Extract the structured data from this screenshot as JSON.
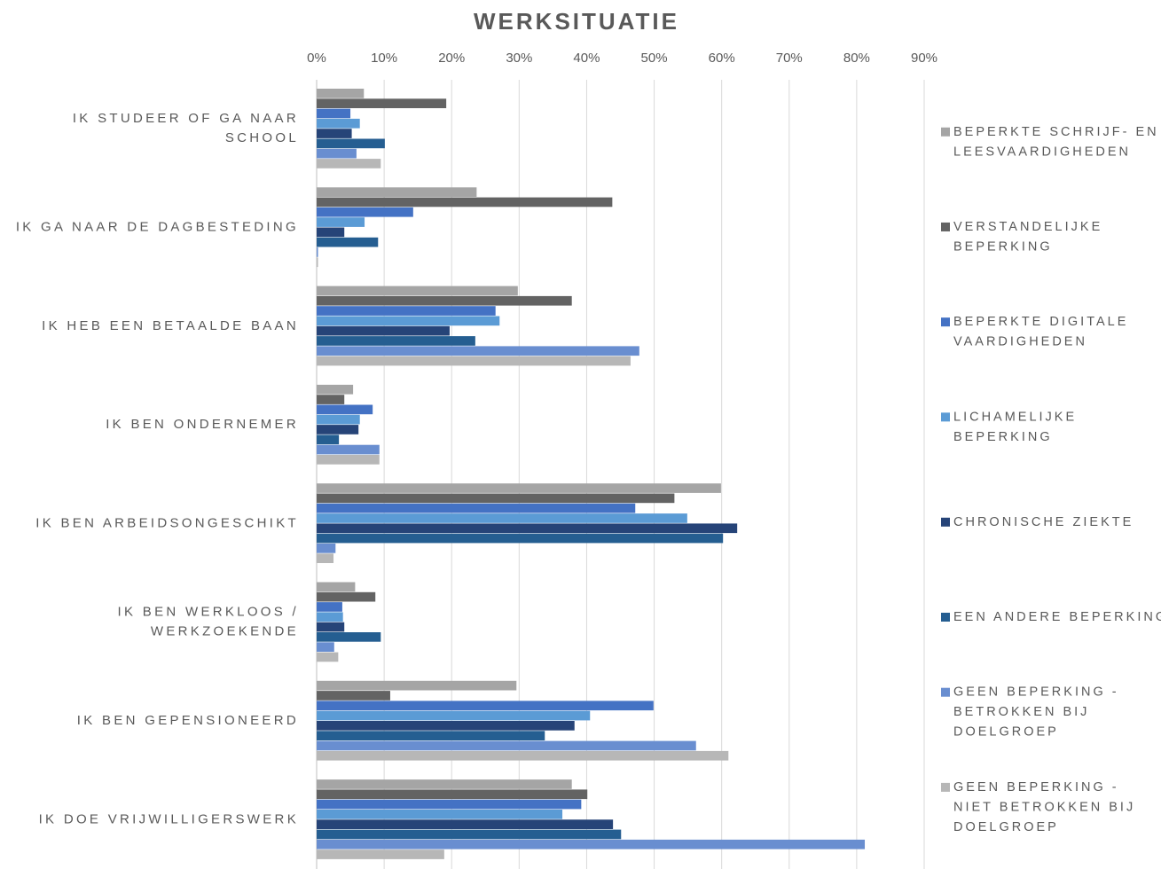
{
  "chart_data": {
    "type": "hbar",
    "title": "WERKSITUATIE",
    "categories": [
      "IK STUDEER OF GA NAAR SCHOOL",
      "IK GA NAAR DE DAGBESTEDING",
      "IK HEB EEN BETAALDE BAAN",
      "IK BEN ONDERNEMER",
      "IK BEN ARBEIDSONGESCHIKT",
      "IK BEN WERKLOOS / WERKZOEKENDE",
      "IK BEN GEPENSIONEERD",
      "IK DOE VRIJWILLIGERSWERK"
    ],
    "series": [
      {
        "name": "BEPERKTE SCHRIJF- EN LEESVAARDIGHEDEN",
        "color": "#a5a5a5",
        "values": [
          7.0,
          23.7,
          29.8,
          5.4,
          59.9,
          5.7,
          29.6,
          37.8
        ]
      },
      {
        "name": "VERSTANDELIJKE BEPERKING",
        "color": "#636363",
        "values": [
          19.2,
          43.8,
          37.8,
          4.1,
          53.0,
          8.7,
          10.9,
          40.1
        ]
      },
      {
        "name": "BEPERKTE DIGITALE VAARDIGHEDEN",
        "color": "#4472c4",
        "values": [
          5.0,
          14.3,
          26.5,
          8.3,
          47.2,
          3.8,
          49.9,
          39.2
        ]
      },
      {
        "name": "LICHAMELIJKE BEPERKING",
        "color": "#5b9bd5",
        "values": [
          6.4,
          7.1,
          27.1,
          6.4,
          54.9,
          3.9,
          40.5,
          36.4
        ]
      },
      {
        "name": "CHRONISCHE ZIEKTE",
        "color": "#264478",
        "values": [
          5.2,
          4.1,
          19.7,
          6.2,
          62.3,
          4.1,
          38.2,
          43.9
        ]
      },
      {
        "name": "EEN ANDERE BEPERKING",
        "color": "#255e91",
        "values": [
          10.1,
          9.1,
          23.5,
          3.3,
          60.2,
          9.5,
          33.8,
          45.1
        ]
      },
      {
        "name": "GEEN BEPERKING - BETROKKEN BIJ DOELGROEP",
        "color": "#698ed0",
        "values": [
          5.9,
          0.2,
          47.8,
          9.3,
          2.8,
          2.6,
          56.2,
          81.2
        ]
      },
      {
        "name": "GEEN BEPERKING - NIET BETROKKEN BIJ DOELGROEP",
        "color": "#b7b7b7",
        "values": [
          9.5,
          0.2,
          46.5,
          9.3,
          2.5,
          3.2,
          61.0,
          18.9
        ]
      }
    ],
    "xlim": [
      0,
      90
    ],
    "xticks": [
      {
        "value": 0,
        "label": "0%"
      },
      {
        "value": 10,
        "label": "10%"
      },
      {
        "value": 20,
        "label": "20%"
      },
      {
        "value": 30,
        "label": "30%"
      },
      {
        "value": 40,
        "label": "40%"
      },
      {
        "value": 50,
        "label": "50%"
      },
      {
        "value": 60,
        "label": "60%"
      },
      {
        "value": 70,
        "label": "70%"
      },
      {
        "value": 80,
        "label": "80%"
      },
      {
        "value": 90,
        "label": "90%"
      }
    ],
    "grid": true,
    "legend": "right"
  }
}
